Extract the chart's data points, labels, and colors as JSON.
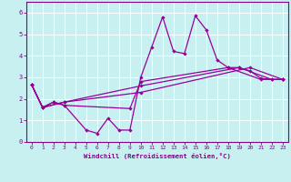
{
  "xlabel": "Windchill (Refroidissement éolien,°C)",
  "bg_color": "#c8f0f0",
  "grid_color": "#ffffff",
  "line_color": "#990099",
  "xlim": [
    -0.5,
    23.5
  ],
  "ylim": [
    0,
    6.5
  ],
  "xticks": [
    0,
    1,
    2,
    3,
    4,
    5,
    6,
    7,
    8,
    9,
    10,
    11,
    12,
    13,
    14,
    15,
    16,
    17,
    18,
    19,
    20,
    21,
    22,
    23
  ],
  "yticks": [
    0,
    1,
    2,
    3,
    4,
    5,
    6
  ],
  "series1_x": [
    0,
    1,
    2,
    3,
    5,
    6,
    7,
    8,
    9,
    10,
    11,
    12,
    13,
    14,
    15,
    16,
    17,
    18,
    19,
    20,
    21,
    22,
    23
  ],
  "series1_y": [
    2.65,
    1.6,
    1.85,
    1.7,
    0.55,
    0.4,
    1.1,
    0.55,
    0.55,
    3.0,
    4.4,
    5.8,
    4.2,
    4.1,
    5.85,
    5.2,
    3.8,
    3.45,
    3.45,
    3.3,
    2.95,
    2.9,
    2.9
  ],
  "series2_x": [
    0,
    1,
    2,
    3,
    9,
    10,
    18,
    21,
    23
  ],
  "series2_y": [
    2.65,
    1.6,
    1.85,
    1.7,
    1.55,
    2.8,
    3.45,
    2.9,
    2.9
  ],
  "series3_x": [
    0,
    1,
    3,
    10,
    19,
    22,
    23
  ],
  "series3_y": [
    2.65,
    1.6,
    1.85,
    2.6,
    3.45,
    2.9,
    2.9
  ],
  "series4_x": [
    0,
    1,
    3,
    10,
    20,
    23
  ],
  "series4_y": [
    2.65,
    1.6,
    1.85,
    2.3,
    3.45,
    2.9
  ]
}
